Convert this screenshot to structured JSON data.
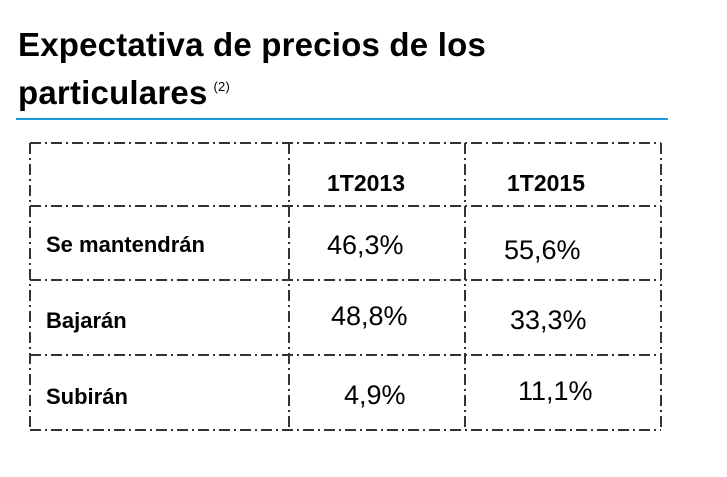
{
  "title": {
    "line1": "Expectativa de precios de los",
    "line2": "particulares",
    "footnote": "(2)"
  },
  "table": {
    "columns": [
      "1T2013",
      "1T2015"
    ],
    "rows": [
      {
        "label": "Se mantendrán",
        "values": [
          "46,3%",
          "55,6%"
        ]
      },
      {
        "label": "Bajarán",
        "values": [
          "48,8%",
          "33,3%"
        ]
      },
      {
        "label": "Subirán",
        "values": [
          "4,9%",
          "11,1%"
        ]
      }
    ]
  },
  "colors": {
    "rule": "#1a9ad6",
    "text": "#000000",
    "border": "#333333"
  }
}
